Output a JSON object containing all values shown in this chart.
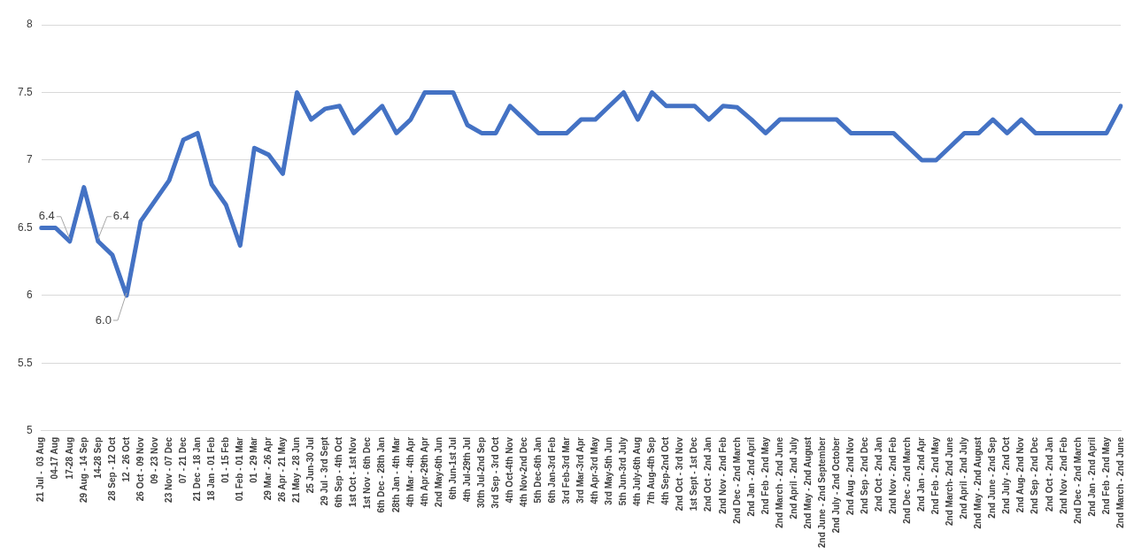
{
  "chart_data": {
    "type": "line",
    "categories": [
      "21 Jul -  03 Aug",
      "04-17 Aug",
      "17-28 Aug",
      "29 Aug - 14 Sep",
      "14-28 Sep",
      "28 Sep - 12 Oct",
      "12 - 26 Oct",
      "26 Oct - 09 Nov",
      "09 - 23 Nov",
      "23 Nov - 07 Dec",
      "07 - 21 Dec",
      "21 Dec - 18 Jan",
      "18 Jan - 01 Feb",
      "01 - 15 Feb",
      "01 Feb - 01 Mar",
      "01 - 29 Mar",
      "29 Mar - 26 Apr",
      "26 Apr - 21 May",
      "21 May - 28 Jun",
      "25 Jun-30 Jul",
      "29 Jul - 3rd Sept",
      "6th Sep - 4th Oct",
      "1st Oct - 1st Nov",
      "1st Nov - 6th Dec",
      "6th Dec - 28th Jan",
      "28th Jan - 4th Mar",
      "4th Mar - 4th Apr",
      "4th Apr-29th Apr",
      "2nd May-6th Jun",
      "6th Jun-1st Jul",
      "4th Jul-29th Jul",
      "30th Jul-2nd Sep",
      "3rd Sep - 3rd Oct",
      "4th Oct-4th Nov",
      "4th Nov-2nd Dec",
      "5th Dec-6th Jan",
      "6th Jan-3rd Feb",
      "3rd Feb-3rd Mar",
      "3rd Mar-3rd Apr",
      "4th Apr-3rd May",
      "3rd May-5th Jun",
      "5th Jun-3rd July",
      "4th July-6th Aug",
      "7th Aug-4th Sep",
      "4th Sep-2nd Oct",
      "2nd Oct - 3rd Nov",
      "1st Sept - 1st Dec",
      "2nd Oct - 2nd Jan",
      "2nd Nov - 2nd Feb",
      "2nd Dec - 2nd March",
      "2nd Jan - 2nd April",
      "2nd Feb - 2nd May",
      "2nd March - 2nd June",
      "2nd April - 2nd July",
      "2nd May - 2nd August",
      "2nd June - 2nd September",
      "2nd July - 2nd October",
      "2nd Aug - 2nd Nov",
      "2nd Sep - 2nd Dec",
      "2nd Oct - 2nd Jan",
      "2nd Nov - 2nd Feb",
      "2nd Dec - 2nd March",
      "2nd Jan - 2nd Apr",
      "2nd Feb - 2nd May",
      "2nd March- 2nd June",
      "2nd April - 2nd July",
      "2nd May - 2nd August",
      "2nd June - 2nd Sep",
      "2nd July - 2nd Oct",
      "2nd Aug- 2nd Nov",
      "2nd Sep - 2nd Dec",
      "2nd Oct - 2nd Jan",
      "2nd Nov - 2nd Feb",
      "2nd Dec - 2nd March",
      "2nd Jan - 2nd April",
      "2nd Feb - 2nd May",
      "2nd March - 2nd June"
    ],
    "series": [
      {
        "color": "#4472c4",
        "values": [
          6.5,
          6.5,
          6.4,
          6.8,
          6.4,
          6.3,
          6.0,
          6.55,
          6.7,
          6.85,
          7.15,
          7.2,
          6.82,
          6.67,
          6.37,
          7.09,
          7.04,
          6.9,
          7.5,
          7.3,
          7.38,
          7.4,
          7.2,
          7.3,
          7.4,
          7.2,
          7.3,
          7.5,
          7.5,
          7.5,
          7.26,
          7.2,
          7.2,
          7.4,
          7.3,
          7.2,
          7.2,
          7.2,
          7.3,
          7.3,
          7.4,
          7.5,
          7.3,
          7.5,
          7.4,
          7.4,
          7.4,
          7.3,
          7.4,
          7.39,
          7.3,
          7.2,
          7.3,
          7.3,
          7.3,
          7.3,
          7.3,
          7.2,
          7.2,
          7.2,
          7.2,
          7.1,
          7.0,
          7.0,
          7.1,
          7.2,
          7.2,
          7.3,
          7.2,
          7.3,
          7.2,
          7.2,
          7.2,
          7.2,
          7.2,
          7.2,
          7.4
        ]
      }
    ],
    "ylim": [
      5,
      8
    ],
    "yticks": [
      5,
      5.5,
      6,
      6.5,
      7,
      7.5,
      8
    ],
    "grid": "y",
    "legend": false,
    "marker": "none",
    "line_style": "solid",
    "annotations": [
      {
        "text": "6.4",
        "x": "17-28 Aug",
        "y": 6.4
      },
      {
        "text": "6.4",
        "x": "14-28 Sep",
        "y": 6.4
      },
      {
        "text": "6.0",
        "x": "12 - 26 Oct",
        "y": 6.0
      }
    ]
  }
}
